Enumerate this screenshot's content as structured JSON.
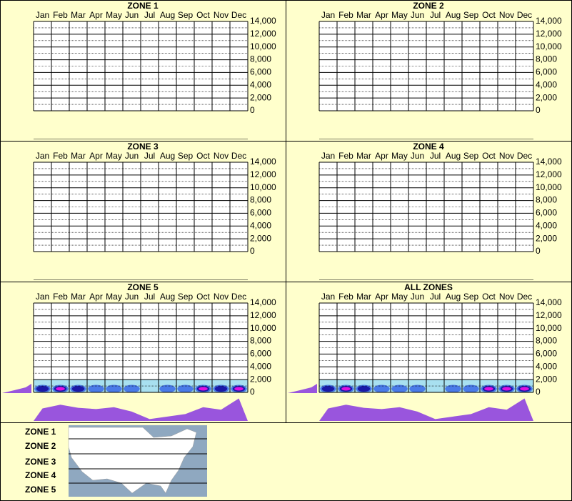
{
  "chart_data": [
    {
      "type": "area",
      "title": "ZONE 1",
      "categories": [
        "Jan",
        "Feb",
        "Mar",
        "Apr",
        "May",
        "Jun",
        "Jul",
        "Aug",
        "Sep",
        "Oct",
        "Nov",
        "Dec"
      ],
      "ylim": [
        0,
        14000
      ],
      "yticks": [
        0,
        {
          "value": 2000,
          "label": "2,000"
        },
        {
          "value": 4000,
          "label": "4,000"
        },
        {
          "value": 6000,
          "label": "6,000"
        },
        {
          "value": 8000,
          "label": "8,000"
        },
        {
          "value": 10000,
          "label": "10,000"
        },
        {
          "value": 12000,
          "label": "12,000"
        },
        {
          "value": 14000,
          "label": "14,000"
        }
      ]
    },
    {
      "type": "area",
      "title": "ZONE 2",
      "categories": [
        "Jan",
        "Feb",
        "Mar",
        "Apr",
        "May",
        "Jun",
        "Jul",
        "Aug",
        "Sep",
        "Oct",
        "Nov",
        "Dec"
      ],
      "ylim": [
        0,
        14000
      ],
      "yticks": [
        0,
        {
          "value": 2000,
          "label": "2,000"
        },
        {
          "value": 4000,
          "label": "4,000"
        },
        {
          "value": 6000,
          "label": "6,000"
        },
        {
          "value": 8000,
          "label": "8,000"
        },
        {
          "value": 10000,
          "label": "10,000"
        },
        {
          "value": 12000,
          "label": "12,000"
        },
        {
          "value": 14000,
          "label": "14,000"
        }
      ]
    },
    {
      "type": "area",
      "title": "ZONE 3",
      "categories": [
        "Jan",
        "Feb",
        "Mar",
        "Apr",
        "May",
        "Jun",
        "Jul",
        "Aug",
        "Sep",
        "Oct",
        "Nov",
        "Dec"
      ],
      "ylim": [
        0,
        14000
      ],
      "yticks": [
        0,
        {
          "value": 2000,
          "label": "2,000"
        },
        {
          "value": 4000,
          "label": "4,000"
        },
        {
          "value": 6000,
          "label": "6,000"
        },
        {
          "value": 8000,
          "label": "8,000"
        },
        {
          "value": 10000,
          "label": "10,000"
        },
        {
          "value": 12000,
          "label": "12,000"
        },
        {
          "value": 14000,
          "label": "14,000"
        }
      ]
    },
    {
      "type": "area",
      "title": "ZONE 4",
      "categories": [
        "Jan",
        "Feb",
        "Mar",
        "Apr",
        "May",
        "Jun",
        "Jul",
        "Aug",
        "Sep",
        "Oct",
        "Nov",
        "Dec"
      ],
      "ylim": [
        0,
        14000
      ],
      "yticks": [
        0,
        {
          "value": 2000,
          "label": "2,000"
        },
        {
          "value": 4000,
          "label": "4,000"
        },
        {
          "value": 6000,
          "label": "6,000"
        },
        {
          "value": 8000,
          "label": "8,000"
        },
        {
          "value": 10000,
          "label": "10,000"
        },
        {
          "value": 12000,
          "label": "12,000"
        },
        {
          "value": 14000,
          "label": "14,000"
        }
      ]
    },
    {
      "type": "area",
      "title": "ZONE 5",
      "categories": [
        "Jan",
        "Feb",
        "Mar",
        "Apr",
        "May",
        "Jun",
        "Jul",
        "Aug",
        "Sep",
        "Oct",
        "Nov",
        "Dec"
      ],
      "ylim": [
        0,
        14000
      ],
      "yticks": [
        0,
        {
          "value": 2000,
          "label": "2,000"
        },
        {
          "value": 4000,
          "label": "4,000"
        },
        {
          "value": 6000,
          "label": "6,000"
        },
        {
          "value": 8000,
          "label": "8,000"
        },
        {
          "value": 10000,
          "label": "10,000"
        },
        {
          "value": 12000,
          "label": "12,000"
        },
        {
          "value": 14000,
          "label": "14,000"
        }
      ],
      "profile": [
        20,
        26,
        21,
        19,
        22,
        15,
        3,
        7,
        11,
        22,
        18,
        36
      ],
      "profile_ylim": [
        0,
        40
      ],
      "density": [
        2,
        3,
        2,
        1,
        1,
        1,
        0,
        1,
        1,
        3,
        2,
        3
      ]
    },
    {
      "type": "area",
      "title": "ALL ZONES",
      "categories": [
        "Jan",
        "Feb",
        "Mar",
        "Apr",
        "May",
        "Jun",
        "Jul",
        "Aug",
        "Sep",
        "Oct",
        "Nov",
        "Dec"
      ],
      "ylim": [
        0,
        14000
      ],
      "yticks": [
        0,
        {
          "value": 2000,
          "label": "2,000"
        },
        {
          "value": 4000,
          "label": "4,000"
        },
        {
          "value": 6000,
          "label": "6,000"
        },
        {
          "value": 8000,
          "label": "8,000"
        },
        {
          "value": 10000,
          "label": "10,000"
        },
        {
          "value": 12000,
          "label": "12,000"
        },
        {
          "value": 14000,
          "label": "14,000"
        }
      ],
      "profile": [
        20,
        26,
        21,
        19,
        22,
        15,
        3,
        7,
        11,
        22,
        18,
        36
      ],
      "profile_ylim": [
        0,
        40
      ],
      "density": [
        2,
        3,
        2,
        1,
        1,
        1,
        0,
        1,
        1,
        3,
        3,
        3
      ]
    }
  ],
  "legend": {
    "zones": [
      "ZONE 1",
      "ZONE 2",
      "ZONE 3",
      "ZONE 4",
      "ZONE 5"
    ]
  }
}
